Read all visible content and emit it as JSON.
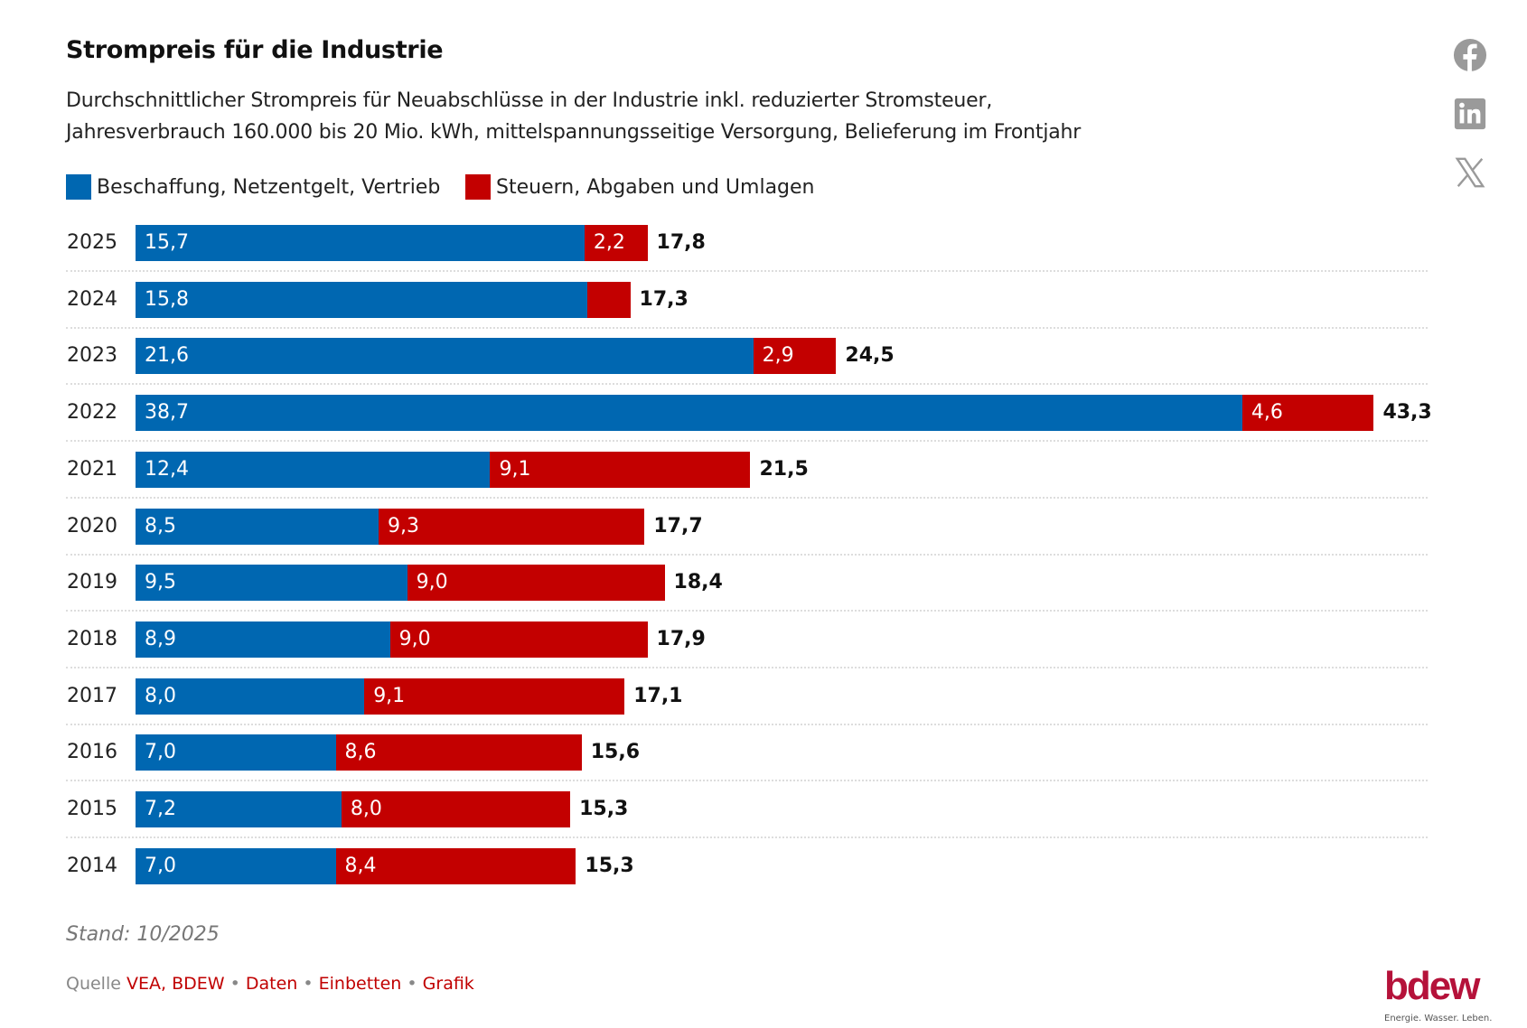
{
  "title": "Strompreis für die Industrie",
  "subtitle": [
    "Durchschnittlicher Strompreis für Neuabschlüsse in der Industrie inkl. reduzierter Stromsteuer,",
    "Jahresverbrauch 160.000 bis 20 Mio. kWh, mittelspannungsseitige Versorgung, Belieferung im Frontjahr"
  ],
  "share_icons": [
    "facebook-icon",
    "linkedin-icon",
    "x-icon"
  ],
  "chart_data": {
    "type": "bar",
    "orientation": "horizontal",
    "stacked": true,
    "categories": [
      "2025",
      "2024",
      "2023",
      "2022",
      "2021",
      "2020",
      "2019",
      "2018",
      "2017",
      "2016",
      "2015",
      "2014"
    ],
    "series": [
      {
        "name": "Beschaffung, Netzentgelt, Vertrieb",
        "color": "#0067b1",
        "values": [
          15.7,
          15.8,
          21.6,
          38.7,
          12.4,
          8.5,
          9.5,
          8.9,
          8.0,
          7.0,
          7.2,
          7.0
        ],
        "labels": [
          "15,7",
          "15,8",
          "21,6",
          "38,7",
          "12,4",
          "8,5",
          "9,5",
          "8,9",
          "8,0",
          "7,0",
          "7,2",
          "7,0"
        ]
      },
      {
        "name": "Steuern, Abgaben und Umlagen",
        "color": "#c30000",
        "values": [
          2.2,
          1.5,
          2.9,
          4.6,
          9.1,
          9.3,
          9.0,
          9.0,
          9.1,
          8.6,
          8.0,
          8.4
        ],
        "labels": [
          "2,2",
          "",
          "2,9",
          "4,6",
          "9,1",
          "9,3",
          "9,0",
          "9,0",
          "9,1",
          "8,6",
          "8,0",
          "8,4"
        ]
      }
    ],
    "totals": [
      "17,8",
      "17,3",
      "24,5",
      "43,3",
      "21,5",
      "17,7",
      "18,4",
      "17,9",
      "17,1",
      "15,6",
      "15,3",
      "15,3"
    ],
    "legend": "top-left",
    "grid": false
  },
  "footer": {
    "stand": "Stand: 10/2025",
    "source_label": "Quelle",
    "source": "VEA, BDEW",
    "sep": "•",
    "links": [
      "Daten",
      "Einbetten",
      "Grafik"
    ]
  },
  "logo": {
    "word": "bdew",
    "tagline": "Energie. Wasser. Leben.",
    "color": "#b5123a"
  }
}
